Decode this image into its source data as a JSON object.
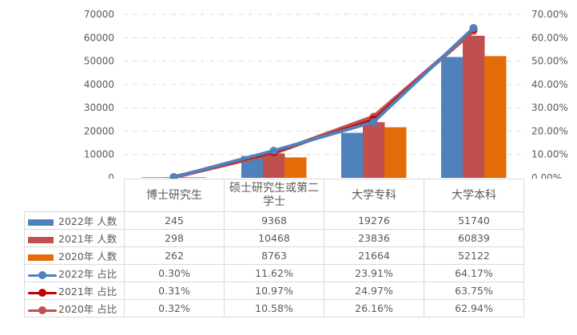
{
  "chart_data": {
    "type": "bar+line",
    "categories": [
      "博士研究生",
      "硕士研究生或第二学士",
      "大学专科",
      "大学本科"
    ],
    "left_axis": {
      "ylim": [
        0,
        70000
      ],
      "ticks": [
        "0",
        "10000",
        "20000",
        "30000",
        "40000",
        "50000",
        "60000",
        "70000"
      ]
    },
    "right_axis": {
      "ylim": [
        0,
        70
      ],
      "ticks": [
        "0.00%",
        "10.00%",
        "20.00%",
        "30.00%",
        "40.00%",
        "50.00%",
        "60.00%",
        "70.00%"
      ]
    },
    "bar_series": [
      {
        "name": "2022年 人数",
        "color": "#4F81BD",
        "values": [
          245,
          9368,
          19276,
          51740
        ],
        "labels": [
          "245",
          "9368",
          "19276",
          "51740"
        ]
      },
      {
        "name": "2021年 人数",
        "color": "#C0504D",
        "values": [
          298,
          10468,
          23836,
          60839
        ],
        "labels": [
          "298",
          "10468",
          "23836",
          "60839"
        ]
      },
      {
        "name": "2020年 人数",
        "color": "#E36C09",
        "values": [
          262,
          8763,
          21664,
          52122
        ],
        "labels": [
          "262",
          "8763",
          "21664",
          "52122"
        ]
      }
    ],
    "line_series": [
      {
        "name": "2022年 占比",
        "color": "#4F81BD",
        "values": [
          0.3,
          11.62,
          23.91,
          64.17
        ],
        "labels": [
          "0.30%",
          "11.62%",
          "23.91%",
          "64.17%"
        ]
      },
      {
        "name": "2021年 占比",
        "color": "#C00000",
        "values": [
          0.31,
          10.97,
          24.97,
          63.75
        ],
        "labels": [
          "0.31%",
          "10.97%",
          "24.97%",
          "63.75%"
        ]
      },
      {
        "name": "2020年 占比",
        "color": "#C0504D",
        "values": [
          0.32,
          10.58,
          26.16,
          62.94
        ],
        "labels": [
          "0.32%",
          "10.58%",
          "26.16%",
          "62.94%"
        ]
      }
    ],
    "grid": true,
    "legend": "data-table"
  }
}
